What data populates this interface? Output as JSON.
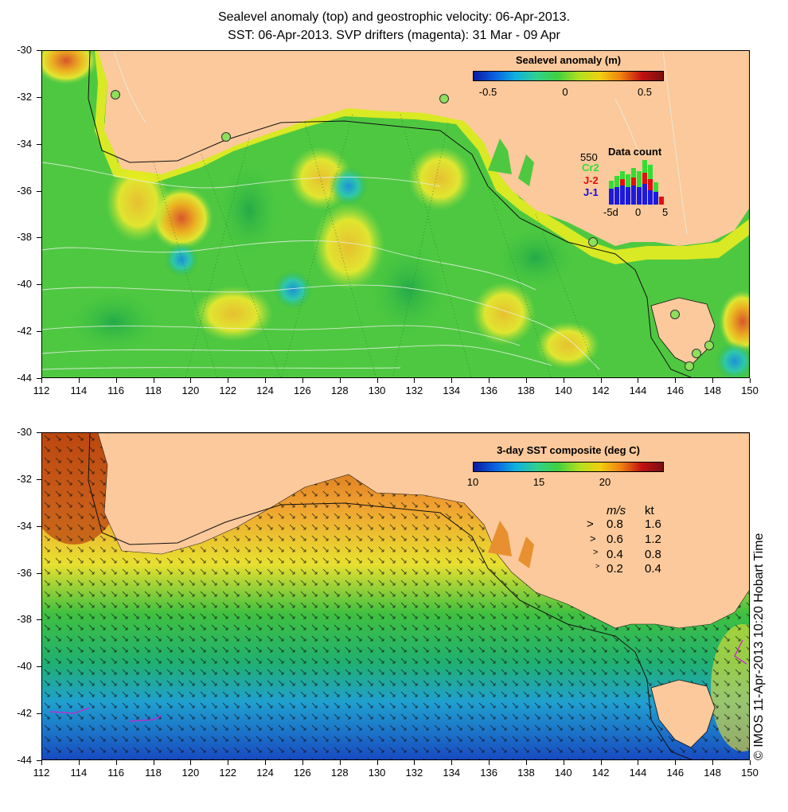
{
  "title": {
    "line1": "Sealevel anomaly (top) and geostrophic velocity: 06-Apr-2013.",
    "line2": "SST: 06-Apr-2013. SVP drifters (magenta): 31 Mar - 09 Apr"
  },
  "axes": {
    "lat_ticks": [
      "-30",
      "-32",
      "-34",
      "-36",
      "-38",
      "-40",
      "-42",
      "-44"
    ],
    "lon_ticks": [
      "112",
      "114",
      "116",
      "118",
      "120",
      "122",
      "124",
      "126",
      "128",
      "130",
      "132",
      "134",
      "136",
      "138",
      "140",
      "142",
      "144",
      "146",
      "148",
      "150"
    ]
  },
  "sla_panel": {
    "colorbar_title": "Sealevel anomaly (m)",
    "colorbar_labels": [
      "-0.5",
      "0",
      "0.5"
    ],
    "data_count": {
      "title": "Data count",
      "max": "550",
      "sat1": "Cr2",
      "sat2": "J-2",
      "sat3": "J-1",
      "x_labels": [
        "-5d",
        "0",
        "5"
      ]
    }
  },
  "sst_panel": {
    "colorbar_title": "3-day SST composite (deg C)",
    "colorbar_labels": [
      "10",
      "15",
      "20"
    ],
    "speed_legend": {
      "header_ms": "m/s",
      "header_kt": "kt",
      "rows": [
        {
          "ms": "0.8",
          "kt": "1.6"
        },
        {
          "ms": "0.6",
          "kt": "1.2"
        },
        {
          "ms": "0.4",
          "kt": "0.8"
        },
        {
          "ms": "0.2",
          "kt": "0.4"
        }
      ]
    }
  },
  "credit": "© IMOS 11-Apr-2013 10:20 Hobart Time",
  "colors": {
    "land": "#fbc99b",
    "sla_mid": "#3fc83f",
    "coast_yellow": "#f2f000"
  }
}
